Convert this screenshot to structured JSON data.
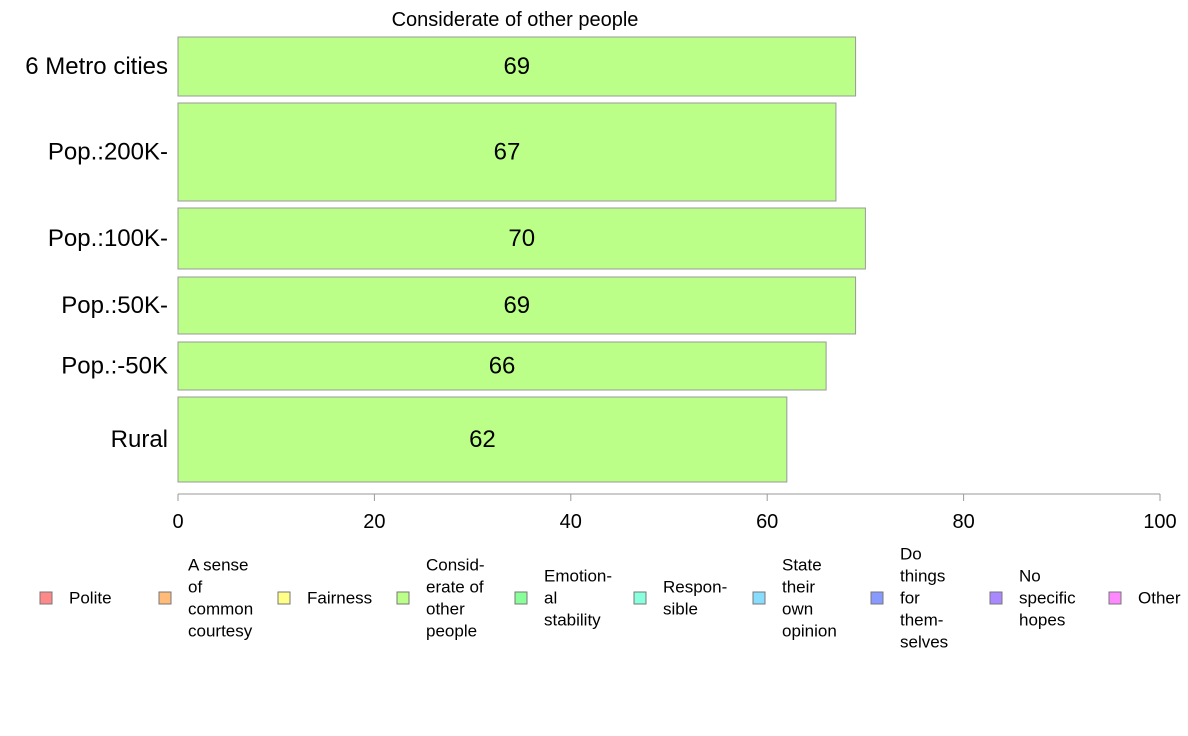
{
  "chart_data": {
    "type": "bar",
    "orientation": "horizontal",
    "title": "Considerate of other people",
    "categories": [
      "6 Metro cities",
      "Pop.:200K-",
      "Pop.:100K-",
      "Pop.:50K-",
      "Pop.:-50K",
      "Rural"
    ],
    "values": [
      69,
      67,
      70,
      69,
      66,
      62
    ],
    "value_labels": [
      "69",
      "67",
      "70",
      "69",
      "66",
      "62"
    ],
    "xlim": [
      0,
      100
    ],
    "xticks": [
      0,
      20,
      40,
      60,
      80,
      100
    ],
    "xtick_labels": [
      "0",
      "20",
      "40",
      "60",
      "80",
      "100"
    ],
    "bar_color": "#bbff88",
    "bar_stroke": "#999999",
    "grid": false,
    "legend_position": "bottom",
    "legend": [
      {
        "label": "Polite",
        "color": "#ff8888"
      },
      {
        "label": "A sense of common courtesy",
        "color": "#ffbb77"
      },
      {
        "label": "Fairness",
        "color": "#ffff88"
      },
      {
        "label": "Considerate of other people",
        "color": "#bbff88"
      },
      {
        "label": "Emotional stability",
        "color": "#88ff99"
      },
      {
        "label": "Responsible",
        "color": "#88ffdd"
      },
      {
        "label": "State their own opinion",
        "color": "#88ddff"
      },
      {
        "label": "Do things for themselves",
        "color": "#8899ff"
      },
      {
        "label": "No specific hopes",
        "color": "#aa88ff"
      },
      {
        "label": "Other",
        "color": "#ff88ff"
      }
    ]
  }
}
